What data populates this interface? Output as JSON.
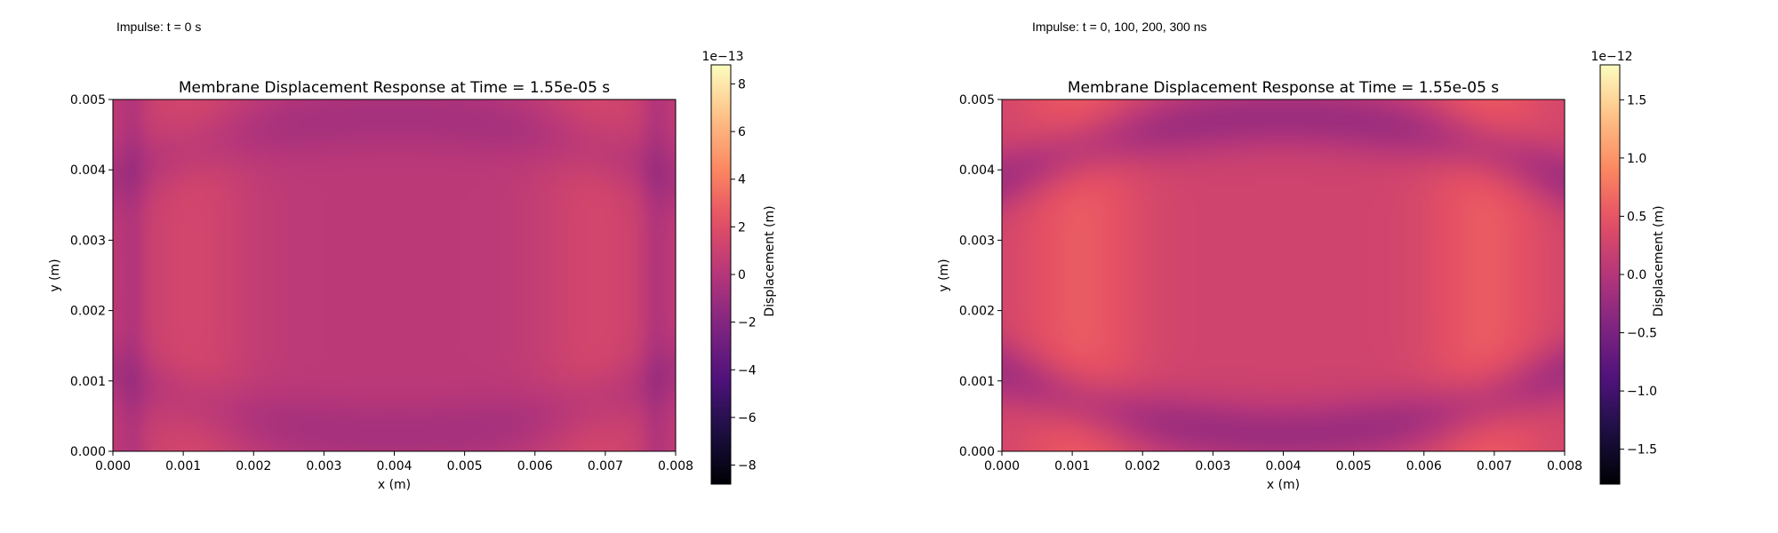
{
  "charts": [
    {
      "caption": "Impulse: t = 0 s",
      "chart_data": {
        "type": "heatmap",
        "title": "Membrane Displacement Response at Time = 1.55e-05 s",
        "xlabel": "x (m)",
        "ylabel": "y (m)",
        "xlim": [
          0,
          0.008
        ],
        "ylim": [
          0,
          0.005
        ],
        "x_ticks": [
          "0.000",
          "0.001",
          "0.002",
          "0.003",
          "0.004",
          "0.005",
          "0.006",
          "0.007",
          "0.008"
        ],
        "y_ticks": [
          "0.000",
          "0.001",
          "0.002",
          "0.003",
          "0.004",
          "0.005"
        ],
        "colormap": "magma",
        "colorbar": {
          "label": "Displacement (m)",
          "multiplier": "1e−13",
          "range": [
            -8.8,
            8.8
          ],
          "ticks": [
            -8,
            -6,
            -4,
            -2,
            0,
            2,
            4,
            6,
            8
          ],
          "tick_labels": [
            "−8",
            "−6",
            "−4",
            "−2",
            "0",
            "2",
            "4",
            "6",
            "8"
          ]
        },
        "field": {
          "edge_bump": 2.0,
          "arc": -0.5,
          "base": 0.3,
          "left_column": 0.8,
          "right_column": 0.8,
          "column_width": 0.6
        }
      }
    },
    {
      "caption": "Impulse: t = 0, 100, 200, 300 ns",
      "chart_data": {
        "type": "heatmap",
        "title": "Membrane Displacement Response at Time = 1.55e-05 s",
        "xlabel": "x (m)",
        "ylabel": "y (m)",
        "xlim": [
          0,
          0.008
        ],
        "ylim": [
          0,
          0.005
        ],
        "x_ticks": [
          "0.000",
          "0.001",
          "0.002",
          "0.003",
          "0.004",
          "0.005",
          "0.006",
          "0.007",
          "0.008"
        ],
        "y_ticks": [
          "0.000",
          "0.001",
          "0.002",
          "0.003",
          "0.004",
          "0.005"
        ],
        "colormap": "magma",
        "colorbar": {
          "label": "Displacement (m)",
          "multiplier": "1e−12",
          "range": [
            -1.8,
            1.8
          ],
          "ticks": [
            -1.5,
            -1.0,
            -0.5,
            0.0,
            0.5,
            1.0,
            1.5
          ],
          "tick_labels": [
            "−1.5",
            "−1.0",
            "−0.5",
            "0.0",
            "0.5",
            "1.0",
            "1.5"
          ]
        },
        "field": {
          "edge_bump": 0.55,
          "arc": -0.25,
          "base": 0.25,
          "left_column": 0,
          "right_column": 0,
          "column_width": 0
        }
      }
    }
  ]
}
